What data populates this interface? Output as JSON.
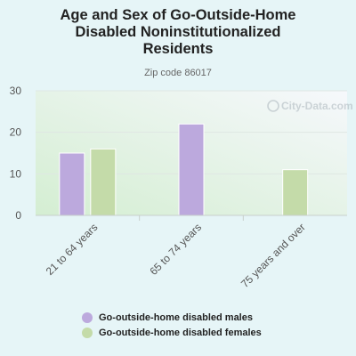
{
  "chart_data": {
    "type": "bar",
    "title_lines": [
      "Age and Sex of Go-Outside-Home",
      "Disabled Noninstitutionalized",
      "Residents"
    ],
    "subtitle": "Zip code 86017",
    "watermark": "City-Data.com",
    "categories": [
      "21 to 64 years",
      "65 to 74 years",
      "75 years and over"
    ],
    "series": [
      {
        "name": "Go-outside-home disabled males",
        "color": "#bca9dd",
        "values": [
          15,
          22,
          null
        ]
      },
      {
        "name": "Go-outside-home disabled females",
        "color": "#c4dba9",
        "values": [
          16,
          null,
          11
        ]
      }
    ],
    "ylim": [
      0,
      30
    ],
    "yticks": [
      0,
      10,
      20,
      30
    ],
    "grid": true,
    "legend_position": "bottom"
  }
}
